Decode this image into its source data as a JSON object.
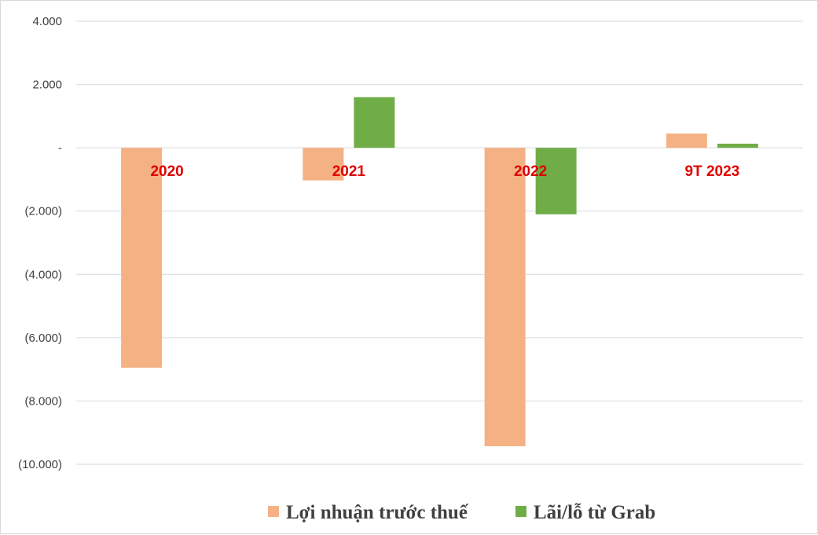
{
  "chart_data": {
    "type": "bar",
    "title": "",
    "xlabel": "",
    "ylabel": "",
    "categories": [
      "2020",
      "2021",
      "2022",
      "9T 2023"
    ],
    "series": [
      {
        "name": "Lợi nhuận trước thuế",
        "color": "#f4b183",
        "values": [
          -6950,
          -1030,
          -9430,
          450
        ]
      },
      {
        "name": "Lãi/lỗ từ Grab",
        "color": "#70ad47",
        "values": [
          0,
          1600,
          -2100,
          130
        ]
      }
    ],
    "ylim": [
      -10000,
      4000
    ],
    "yticks": [
      4000,
      2000,
      0,
      -2000,
      -4000,
      -6000,
      -8000,
      -10000
    ],
    "ytick_labels": [
      "4.000",
      "2.000",
      "-",
      "(2.000)",
      "(4.000)",
      "(6.000)",
      "(8.000)",
      "(10.000)"
    ],
    "grid": true,
    "legend_position": "bottom",
    "category_label_color": "#e00000",
    "gridline_color": "#d9d9d9"
  }
}
